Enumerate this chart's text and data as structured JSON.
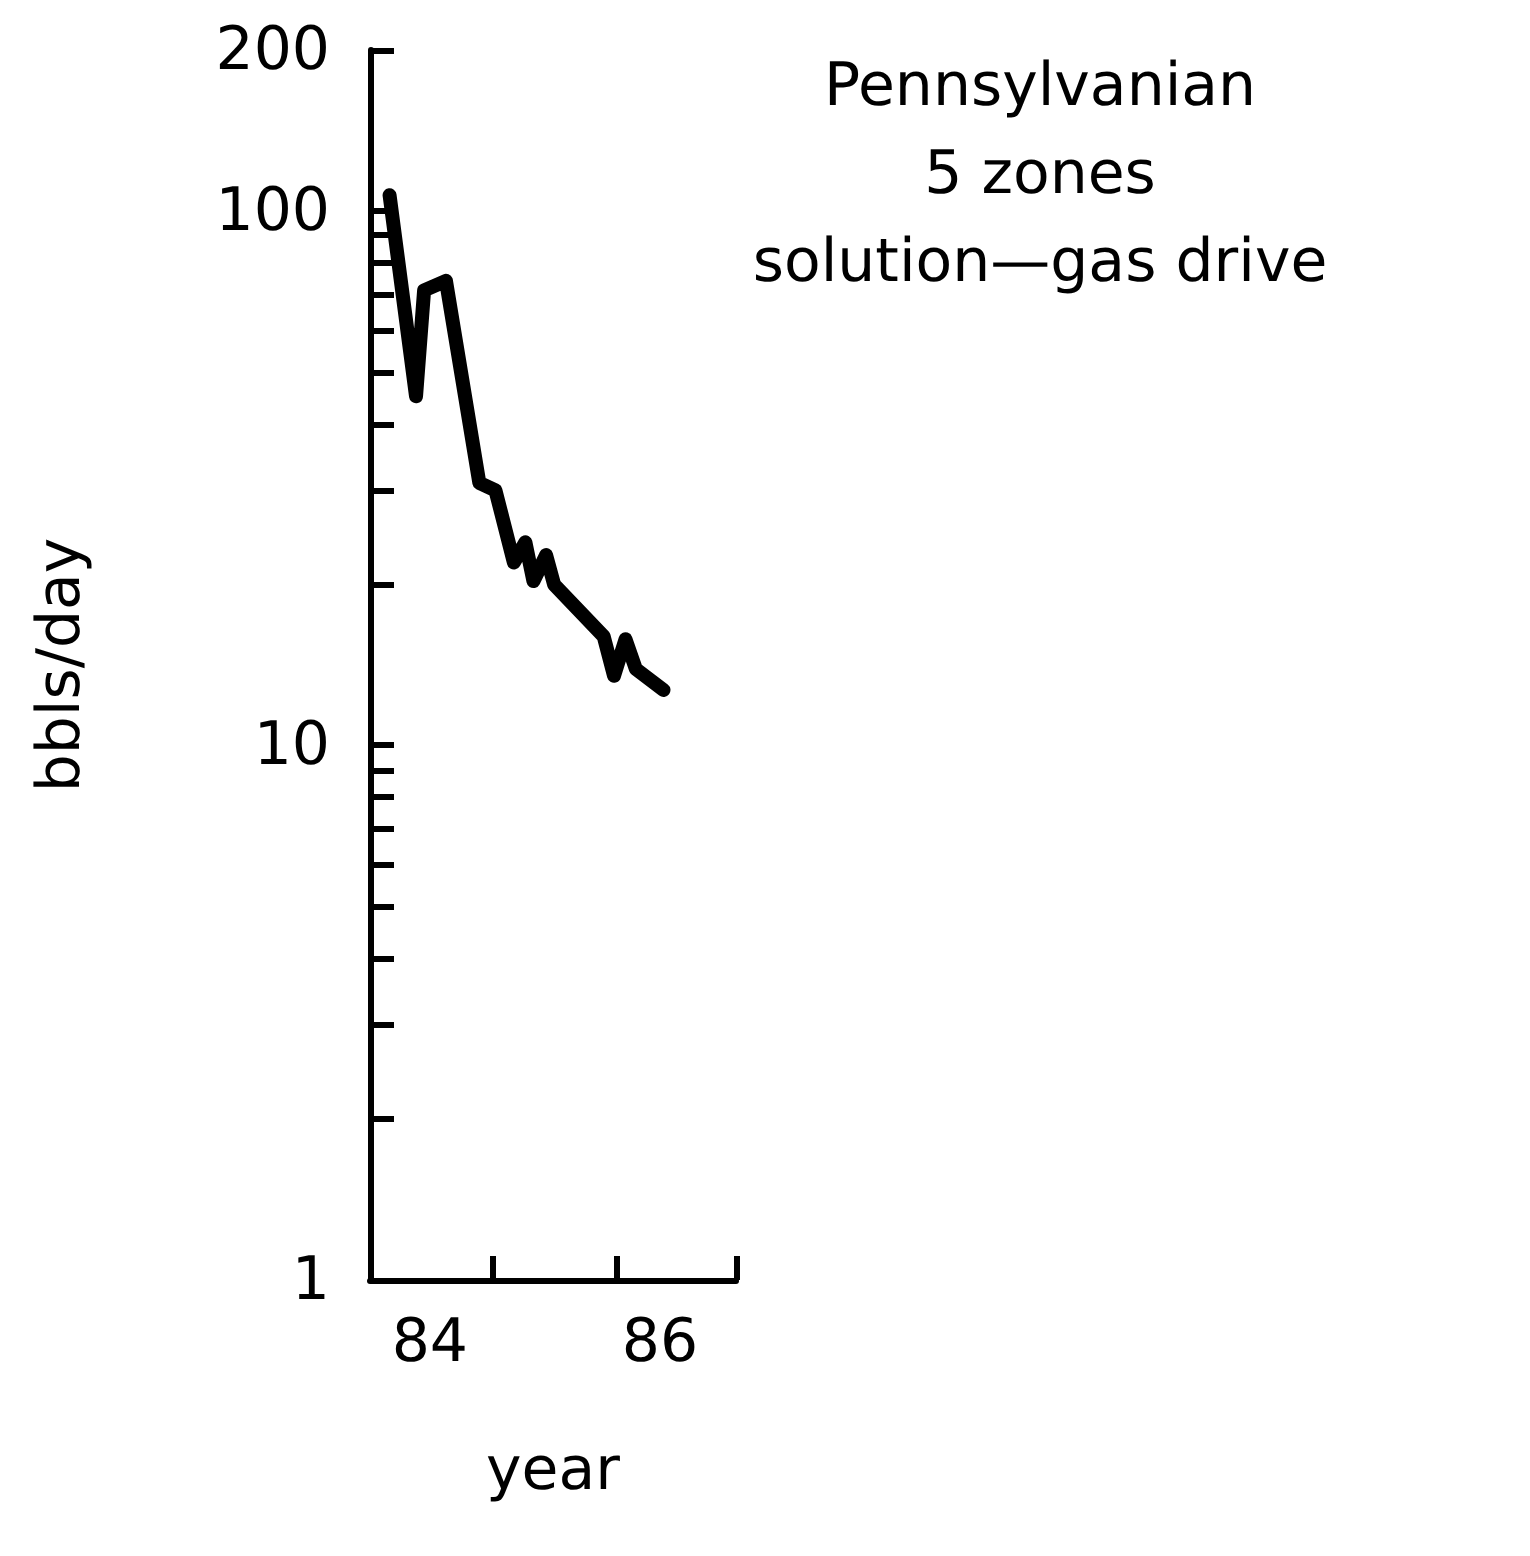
{
  "chart_data": {
    "type": "line",
    "xlabel": "year",
    "ylabel": "bbls/day",
    "annotations": [
      "Pennsylvanian",
      "5 zones",
      "solution—gas drive"
    ],
    "log": true,
    "grid": false,
    "line_style": "solid",
    "series": [
      {
        "color": "#000000",
        "x": [
          83.65,
          83.88,
          83.95,
          84.14,
          84.43,
          84.57,
          84.73,
          84.83,
          84.9,
          85.01,
          85.08,
          85.51,
          85.6,
          85.7,
          85.79,
          86.03
        ],
        "values": [
          107,
          45,
          71,
          74,
          31,
          30,
          22,
          24,
          20.3,
          22.7,
          20,
          16,
          13.5,
          15.8,
          13.9,
          12.7
        ]
      }
    ],
    "xlim": [
      83.48,
      86.66
    ],
    "xticks": [
      84,
      {
        "value": 84.54,
        "label": null
      },
      {
        "value": 85.62,
        "label": null
      },
      86,
      {
        "value": 86.66,
        "label": null
      }
    ],
    "ylim": [
      1,
      200
    ],
    "yticks": [
      1,
      {
        "value": 2,
        "label": null
      },
      {
        "value": 3,
        "label": null
      },
      {
        "value": 4,
        "label": null
      },
      {
        "value": 5,
        "label": null
      },
      {
        "value": 6,
        "label": null
      },
      {
        "value": 7,
        "label": null
      },
      {
        "value": 8,
        "label": null
      },
      {
        "value": 9,
        "label": null
      },
      10,
      {
        "value": 20,
        "label": null
      },
      {
        "value": 30,
        "label": null
      },
      {
        "value": 40,
        "label": null
      },
      {
        "value": 50,
        "label": null
      },
      {
        "value": 60,
        "label": null
      },
      {
        "value": 70,
        "label": null
      },
      {
        "value": 80,
        "label": null
      },
      {
        "value": 90,
        "label": null
      },
      100,
      200
    ]
  }
}
